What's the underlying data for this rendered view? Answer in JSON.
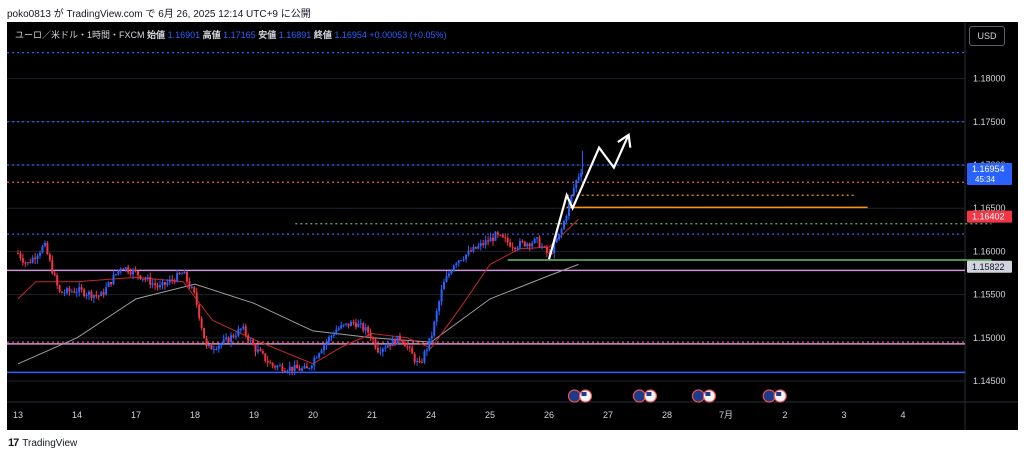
{
  "header": {
    "published_by": "poko0813 が TradingView.com で 6月 26, 2025 12:14 UTC+9 に公開"
  },
  "legend": {
    "symbol": "ユーロ／米ドル・1時間・FXCM",
    "open_label": "始値",
    "open": "1.16901",
    "high_label": "高値",
    "high": "1.17165",
    "low_label": "安値",
    "low": "1.16891",
    "close_label": "終値",
    "close": "1.16954",
    "change": "+0.00053 (+0.05%)"
  },
  "currency_button": "USD",
  "footer": {
    "logo_mark": "17",
    "logo_text": "TradingView"
  },
  "colors": {
    "background": "#000000",
    "up": "#2962ff",
    "down": "#f23645",
    "ma_fast": "#c62828",
    "ma_slow": "#9e9e9e",
    "hline_blue": "#2962ff",
    "hline_red": "#ef5350",
    "hline_purple": "#ce93d8",
    "orange": "#ff9800",
    "green": "#66bb6a",
    "arrow": "#ffffff"
  },
  "chart_data": {
    "type": "candlestick",
    "symbol": "EUR/USD",
    "timeframe": "1H",
    "y_axis": {
      "min": 1.1435,
      "max": 1.184,
      "tick_labels": [
        "1.18000",
        "1.17500",
        "1.17000",
        "1.16500",
        "1.16000",
        "1.15500",
        "1.15000",
        "1.14500"
      ],
      "tick_values": [
        1.18,
        1.175,
        1.17,
        1.165,
        1.16,
        1.155,
        1.15,
        1.145
      ]
    },
    "x_axis": {
      "labels": [
        "13",
        "14",
        "17",
        "18",
        "19",
        "20",
        "21",
        "24",
        "25",
        "26",
        "27",
        "28",
        "7月",
        "2",
        "3",
        "4"
      ]
    },
    "price_path": [
      {
        "day": 0.0,
        "price": 1.1598
      },
      {
        "day": 0.15,
        "price": 1.1585
      },
      {
        "day": 0.45,
        "price": 1.1607
      },
      {
        "day": 0.7,
        "price": 1.1552
      },
      {
        "day": 1.0,
        "price": 1.1555
      },
      {
        "day": 1.4,
        "price": 1.1548
      },
      {
        "day": 1.75,
        "price": 1.1583
      },
      {
        "day": 2.0,
        "price": 1.1575
      },
      {
        "day": 2.4,
        "price": 1.1558
      },
      {
        "day": 2.8,
        "price": 1.1575
      },
      {
        "day": 3.0,
        "price": 1.1548
      },
      {
        "day": 3.2,
        "price": 1.1487
      },
      {
        "day": 3.5,
        "price": 1.1495
      },
      {
        "day": 3.8,
        "price": 1.1511
      },
      {
        "day": 4.0,
        "price": 1.1489
      },
      {
        "day": 4.3,
        "price": 1.1468
      },
      {
        "day": 4.6,
        "price": 1.1465
      },
      {
        "day": 4.9,
        "price": 1.1463
      },
      {
        "day": 5.1,
        "price": 1.1485
      },
      {
        "day": 5.4,
        "price": 1.151
      },
      {
        "day": 5.7,
        "price": 1.1518
      },
      {
        "day": 5.95,
        "price": 1.1506
      },
      {
        "day": 6.1,
        "price": 1.1487
      },
      {
        "day": 6.5,
        "price": 1.15
      },
      {
        "day": 6.8,
        "price": 1.1467
      },
      {
        "day": 7.0,
        "price": 1.15
      },
      {
        "day": 7.2,
        "price": 1.156
      },
      {
        "day": 7.4,
        "price": 1.1588
      },
      {
        "day": 7.8,
        "price": 1.1605
      },
      {
        "day": 8.1,
        "price": 1.1618
      },
      {
        "day": 8.4,
        "price": 1.1607
      },
      {
        "day": 8.8,
        "price": 1.1612
      },
      {
        "day": 9.0,
        "price": 1.1595
      },
      {
        "day": 9.2,
        "price": 1.1622
      },
      {
        "day": 9.45,
        "price": 1.168
      },
      {
        "day": 9.55,
        "price": 1.1695
      }
    ],
    "ma_fast_path": [
      {
        "day": 0.0,
        "price": 1.1545
      },
      {
        "day": 0.3,
        "price": 1.1565
      },
      {
        "day": 1.0,
        "price": 1.1565
      },
      {
        "day": 2.0,
        "price": 1.157
      },
      {
        "day": 2.8,
        "price": 1.1565
      },
      {
        "day": 3.3,
        "price": 1.152
      },
      {
        "day": 4.0,
        "price": 1.1498
      },
      {
        "day": 5.0,
        "price": 1.147
      },
      {
        "day": 5.5,
        "price": 1.149
      },
      {
        "day": 6.0,
        "price": 1.1505
      },
      {
        "day": 6.6,
        "price": 1.15
      },
      {
        "day": 7.0,
        "price": 1.1488
      },
      {
        "day": 7.5,
        "price": 1.1535
      },
      {
        "day": 8.0,
        "price": 1.1585
      },
      {
        "day": 8.5,
        "price": 1.1603
      },
      {
        "day": 9.0,
        "price": 1.1605
      },
      {
        "day": 9.5,
        "price": 1.1637
      }
    ],
    "ma_slow_path": [
      {
        "day": 0.0,
        "price": 1.147
      },
      {
        "day": 1.0,
        "price": 1.15
      },
      {
        "day": 2.0,
        "price": 1.1545
      },
      {
        "day": 3.0,
        "price": 1.1562
      },
      {
        "day": 4.0,
        "price": 1.154
      },
      {
        "day": 5.0,
        "price": 1.1508
      },
      {
        "day": 6.0,
        "price": 1.15
      },
      {
        "day": 7.0,
        "price": 1.1495
      },
      {
        "day": 8.0,
        "price": 1.1545
      },
      {
        "day": 9.0,
        "price": 1.1572
      },
      {
        "day": 9.5,
        "price": 1.1585
      }
    ],
    "horizontal_lines": [
      {
        "price": 1.183,
        "color": "#2962ff",
        "style": "dotted"
      },
      {
        "price": 1.175,
        "color": "#2962ff",
        "style": "dotted"
      },
      {
        "price": 1.17,
        "color": "#2962ff",
        "style": "dotted"
      },
      {
        "price": 1.168,
        "color": "#ef5350",
        "style": "dotted"
      },
      {
        "price": 1.162,
        "color": "#2962ff",
        "style": "dotted"
      },
      {
        "price": 1.1578,
        "color": "#ce93d8",
        "style": "solid"
      },
      {
        "price": 1.1495,
        "color": "#ef5350",
        "style": "dotted"
      },
      {
        "price": 1.1493,
        "color": "#ce93d8",
        "style": "solid"
      },
      {
        "price": 1.146,
        "color": "#2962ff",
        "style": "solid"
      }
    ],
    "short_lines": [
      {
        "price": 1.1665,
        "day_from": 9.3,
        "day_to": 14.2,
        "color": "#ff9800",
        "style": "dotted"
      },
      {
        "price": 1.1651,
        "day_from": 9.3,
        "day_to": 14.4,
        "color": "#ff9800",
        "style": "solid"
      },
      {
        "price": 1.1632,
        "day_from": 4.7,
        "day_to": 16.5,
        "color": "#66bb6a",
        "style": "dotted"
      },
      {
        "price": 1.159,
        "day_from": 8.3,
        "day_to": 16.5,
        "color": "#66bb6a",
        "style": "solid"
      }
    ],
    "forecast_arrow": [
      {
        "day": 9.0,
        "price": 1.1591
      },
      {
        "day": 9.3,
        "price": 1.1665
      },
      {
        "day": 9.4,
        "price": 1.165
      },
      {
        "day": 9.85,
        "price": 1.172
      },
      {
        "day": 10.1,
        "price": 1.1697
      },
      {
        "day": 10.35,
        "price": 1.1735
      }
    ],
    "price_labels": [
      {
        "text": "1.16954",
        "sub": "45:34",
        "price": 1.16954,
        "color": "#2962ff"
      },
      {
        "text": "1.16402",
        "price": 1.16402,
        "color": "#f23645"
      },
      {
        "text": "1.15822",
        "price": 1.15822,
        "color": "#d1d4dc"
      }
    ],
    "event_days": [
      9.5,
      10.6,
      11.6,
      12.8
    ]
  }
}
